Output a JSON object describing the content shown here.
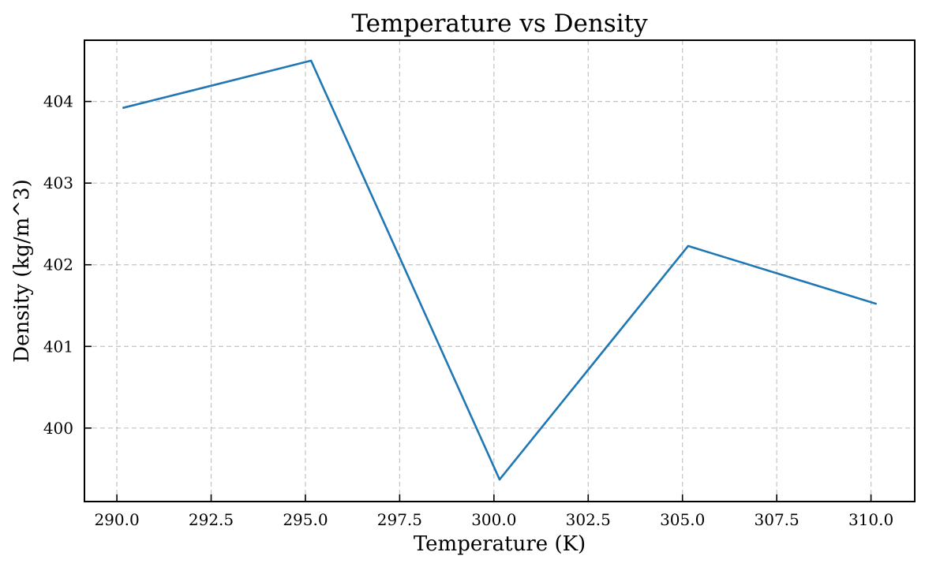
{
  "chart_data": {
    "type": "line",
    "title": "Temperature vs Density",
    "xlabel": "Temperature (K)",
    "ylabel": "Density (kg/m^3)",
    "xlim": [
      289.14,
      311.16
    ],
    "ylim": [
      399.1,
      404.75
    ],
    "xticks": [
      290.0,
      292.5,
      295.0,
      297.5,
      300.0,
      302.5,
      305.0,
      307.5,
      310.0
    ],
    "xtick_labels": [
      "290.0",
      "292.5",
      "295.0",
      "297.5",
      "300.0",
      "302.5",
      "305.0",
      "307.5",
      "310.0"
    ],
    "yticks": [
      400,
      401,
      402,
      403,
      404
    ],
    "ytick_labels": [
      "400",
      "401",
      "402",
      "403",
      "404"
    ],
    "grid": true,
    "series": [
      {
        "color": "#1f77b4",
        "x": [
          290.15,
          295.15,
          300.15,
          305.15,
          310.15
        ],
        "y": [
          403.92,
          404.5,
          399.37,
          402.23,
          401.52
        ]
      }
    ]
  }
}
